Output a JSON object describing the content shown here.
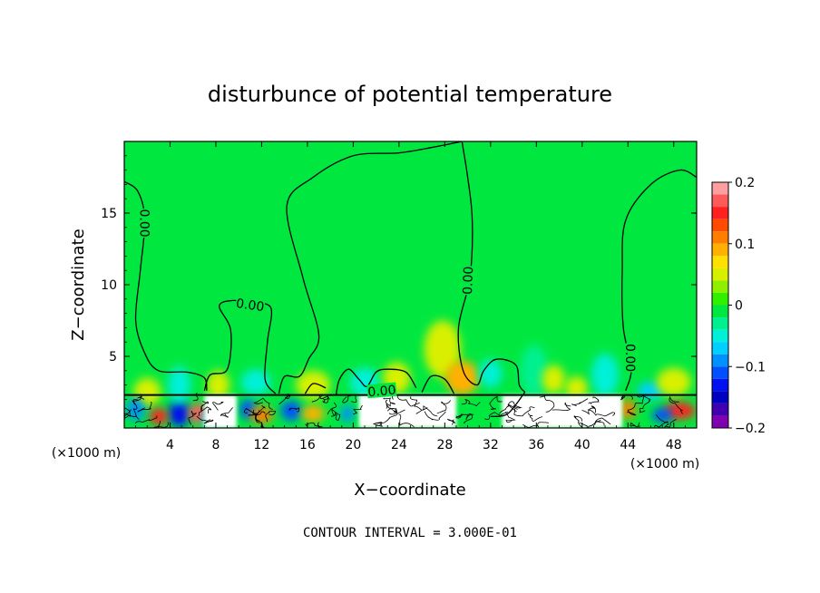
{
  "chart_data": {
    "type": "heatmap",
    "title": "disturbunce of potential temperature",
    "xlabel": "X−coordinate",
    "ylabel": "Z−coordinate",
    "x_unit_left": "(×1000 m)",
    "x_unit_right": "(×1000 m)",
    "xlim": [
      0,
      50
    ],
    "ylim": [
      0,
      20
    ],
    "x_ticks": [
      {
        "value": 4,
        "label": "4"
      },
      {
        "value": 8,
        "label": "8"
      },
      {
        "value": 12,
        "label": "12"
      },
      {
        "value": 16,
        "label": "16"
      },
      {
        "value": 20,
        "label": "20"
      },
      {
        "value": 24,
        "label": "24"
      },
      {
        "value": 28,
        "label": "28"
      },
      {
        "value": 32,
        "label": "32"
      },
      {
        "value": 36,
        "label": "36"
      },
      {
        "value": 40,
        "label": "40"
      },
      {
        "value": 44,
        "label": "44"
      },
      {
        "value": 48,
        "label": "48"
      }
    ],
    "y_ticks": [
      {
        "value": 5,
        "label": "5"
      },
      {
        "value": 10,
        "label": "10"
      },
      {
        "value": 15,
        "label": "15"
      }
    ],
    "colorbar": {
      "range": [
        -0.2,
        0.2
      ],
      "levels": [
        {
          "lo": 0.18,
          "hi": 0.2,
          "color": "#ff9e9e"
        },
        {
          "lo": 0.16,
          "hi": 0.18,
          "color": "#ff5a5a"
        },
        {
          "lo": 0.14,
          "hi": 0.16,
          "color": "#ff2020"
        },
        {
          "lo": 0.12,
          "hi": 0.14,
          "color": "#ff4a00"
        },
        {
          "lo": 0.1,
          "hi": 0.12,
          "color": "#ff7e00"
        },
        {
          "lo": 0.08,
          "hi": 0.1,
          "color": "#ffb000"
        },
        {
          "lo": 0.06,
          "hi": 0.08,
          "color": "#ffe000"
        },
        {
          "lo": 0.04,
          "hi": 0.06,
          "color": "#d8f000"
        },
        {
          "lo": 0.02,
          "hi": 0.04,
          "color": "#8ef000"
        },
        {
          "lo": 0.0,
          "hi": 0.02,
          "color": "#30f000"
        },
        {
          "lo": -0.02,
          "hi": 0.0,
          "color": "#00e840"
        },
        {
          "lo": -0.04,
          "hi": -0.02,
          "color": "#00f090"
        },
        {
          "lo": -0.06,
          "hi": -0.04,
          "color": "#00f0d8"
        },
        {
          "lo": -0.08,
          "hi": -0.06,
          "color": "#00d0ff"
        },
        {
          "lo": -0.1,
          "hi": -0.08,
          "color": "#0090ff"
        },
        {
          "lo": -0.12,
          "hi": -0.1,
          "color": "#0050ff"
        },
        {
          "lo": -0.14,
          "hi": -0.12,
          "color": "#0010f0"
        },
        {
          "lo": -0.16,
          "hi": -0.14,
          "color": "#0000c0"
        },
        {
          "lo": -0.18,
          "hi": -0.16,
          "color": "#4000b0"
        },
        {
          "lo": -0.2,
          "hi": -0.18,
          "color": "#8000b0"
        }
      ],
      "tick_labels": [
        {
          "value": 0.2,
          "label": "0.2"
        },
        {
          "value": 0.1,
          "label": "0.1"
        },
        {
          "value": 0.0,
          "label": "0"
        },
        {
          "value": -0.1,
          "label": "−0.1"
        },
        {
          "value": -0.2,
          "label": "−0.2"
        }
      ]
    },
    "background_value": -0.01,
    "contour_labels": [
      {
        "x": 1.8,
        "z": 14.3,
        "text": "0.00",
        "rotate": 90
      },
      {
        "x": 11.0,
        "z": 8.6,
        "text": "0.00",
        "rotate": 8
      },
      {
        "x": 22.5,
        "z": 2.6,
        "text": "0.00",
        "rotate": -5
      },
      {
        "x": 30.0,
        "z": 10.3,
        "text": "0.00",
        "rotate": -88
      },
      {
        "x": 44.2,
        "z": 4.9,
        "text": "0.00",
        "rotate": 90
      }
    ],
    "zero_contours": [
      {
        "name": "c1",
        "points": [
          [
            0,
            17.2
          ],
          [
            1.2,
            16.5
          ],
          [
            1.8,
            14.5
          ],
          [
            1.4,
            11.0
          ],
          [
            1.0,
            7.5
          ],
          [
            1.8,
            5.2
          ],
          [
            3.0,
            4.0
          ],
          [
            5.5,
            3.9
          ],
          [
            7.0,
            3.5
          ],
          [
            7.2,
            2.6
          ]
        ]
      },
      {
        "name": "c2",
        "points": [
          [
            7.0,
            2.6
          ],
          [
            7.5,
            3.7
          ],
          [
            9.0,
            4.1
          ],
          [
            9.3,
            6.8
          ],
          [
            8.3,
            8.5
          ],
          [
            9.5,
            8.9
          ],
          [
            11.0,
            8.7
          ],
          [
            12.8,
            8.4
          ],
          [
            12.5,
            6.0
          ],
          [
            12.3,
            3.4
          ],
          [
            13.2,
            2.4
          ]
        ]
      },
      {
        "name": "c3",
        "points": [
          [
            13.5,
            2.4
          ],
          [
            14.0,
            3.6
          ],
          [
            15.3,
            3.6
          ],
          [
            16.1,
            4.8
          ],
          [
            17.0,
            6.5
          ],
          [
            15.6,
            10.5
          ],
          [
            14.2,
            15.5
          ],
          [
            16.5,
            17.5
          ],
          [
            20.0,
            19.0
          ],
          [
            24.0,
            19.2
          ],
          [
            27.0,
            19.6
          ],
          [
            29.5,
            20.0
          ]
        ]
      },
      {
        "name": "c4",
        "points": [
          [
            29.5,
            20.0
          ],
          [
            30.0,
            17.5
          ],
          [
            30.4,
            14.5
          ],
          [
            30.2,
            10.5
          ],
          [
            29.2,
            7.0
          ],
          [
            29.6,
            4.0
          ],
          [
            30.8,
            3.0
          ],
          [
            31.4,
            4.0
          ],
          [
            32.5,
            4.8
          ],
          [
            34.2,
            4.4
          ],
          [
            34.5,
            3.0
          ],
          [
            35.0,
            2.5
          ]
        ]
      },
      {
        "name": "c5",
        "points": [
          [
            35.0,
            2.5
          ],
          [
            33.5,
            1.0
          ],
          [
            32.0,
            0.8
          ]
        ]
      },
      {
        "name": "c6",
        "points": [
          [
            50.0,
            17.5
          ],
          [
            48.5,
            18.0
          ],
          [
            46.0,
            17.0
          ],
          [
            43.8,
            14.5
          ],
          [
            43.5,
            11.0
          ],
          [
            43.6,
            7.0
          ],
          [
            44.3,
            4.2
          ],
          [
            43.8,
            2.6
          ]
        ]
      },
      {
        "name": "c7",
        "points": [
          [
            18.5,
            2.3
          ],
          [
            18.8,
            3.4
          ],
          [
            19.6,
            4.1
          ],
          [
            20.5,
            3.4
          ],
          [
            21.2,
            2.9
          ],
          [
            22.0,
            3.9
          ],
          [
            23.0,
            4.1
          ],
          [
            24.6,
            3.9
          ],
          [
            25.5,
            2.8
          ]
        ]
      },
      {
        "name": "c8",
        "points": [
          [
            26.0,
            2.5
          ],
          [
            26.8,
            3.6
          ],
          [
            28.0,
            3.4
          ],
          [
            28.8,
            2.4
          ]
        ]
      },
      {
        "name": "c9",
        "points": [
          [
            15.8,
            2.4
          ],
          [
            16.5,
            3.1
          ],
          [
            17.6,
            2.8
          ]
        ]
      }
    ],
    "blobs": [
      {
        "x": 4.8,
        "z": 1.0,
        "rx": 0.9,
        "rz": 0.9,
        "value": -0.13
      },
      {
        "x": 4.8,
        "z": 3.0,
        "rx": 1.0,
        "rz": 1.3,
        "value": -0.06
      },
      {
        "x": 2.0,
        "z": 2.5,
        "rx": 1.2,
        "rz": 1.0,
        "value": 0.05
      },
      {
        "x": 6.5,
        "z": 1.0,
        "rx": 0.9,
        "rz": 0.7,
        "value": 0.16
      },
      {
        "x": 3.0,
        "z": 0.8,
        "rx": 0.8,
        "rz": 0.6,
        "value": 0.14
      },
      {
        "x": 8.0,
        "z": 0.7,
        "rx": 1.2,
        "rz": 0.6,
        "value": -0.08
      },
      {
        "x": 8.2,
        "z": 3.0,
        "rx": 1.0,
        "rz": 1.0,
        "value": 0.04
      },
      {
        "x": 10.8,
        "z": 1.3,
        "rx": 0.7,
        "rz": 0.7,
        "value": -0.12
      },
      {
        "x": 12.0,
        "z": 0.9,
        "rx": 1.0,
        "rz": 0.6,
        "value": 0.1
      },
      {
        "x": 11.5,
        "z": 3.2,
        "rx": 1.3,
        "rz": 0.9,
        "value": -0.06
      },
      {
        "x": 14.6,
        "z": 1.2,
        "rx": 0.9,
        "rz": 0.7,
        "value": -0.12
      },
      {
        "x": 16.5,
        "z": 1.0,
        "rx": 1.0,
        "rz": 0.6,
        "value": 0.08
      },
      {
        "x": 16.5,
        "z": 3.0,
        "rx": 1.5,
        "rz": 1.0,
        "value": 0.04
      },
      {
        "x": 21.0,
        "z": 3.2,
        "rx": 1.3,
        "rz": 1.0,
        "value": -0.05
      },
      {
        "x": 23.8,
        "z": 3.5,
        "rx": 1.2,
        "rz": 1.1,
        "value": 0.05
      },
      {
        "x": 27.8,
        "z": 5.5,
        "rx": 1.6,
        "rz": 2.0,
        "value": 0.05
      },
      {
        "x": 29.5,
        "z": 3.5,
        "rx": 1.5,
        "rz": 1.2,
        "value": 0.08
      },
      {
        "x": 32.0,
        "z": 3.8,
        "rx": 1.0,
        "rz": 1.0,
        "value": -0.05
      },
      {
        "x": 35.8,
        "z": 4.0,
        "rx": 1.2,
        "rz": 1.8,
        "value": -0.04
      },
      {
        "x": 37.5,
        "z": 3.4,
        "rx": 1.0,
        "rz": 1.0,
        "value": 0.05
      },
      {
        "x": 39.5,
        "z": 2.8,
        "rx": 1.0,
        "rz": 0.8,
        "value": 0.04
      },
      {
        "x": 42.0,
        "z": 3.7,
        "rx": 1.2,
        "rz": 1.5,
        "value": -0.05
      },
      {
        "x": 46.0,
        "z": 2.6,
        "rx": 1.2,
        "rz": 0.6,
        "value": -0.08
      },
      {
        "x": 48.0,
        "z": 3.2,
        "rx": 1.5,
        "rz": 1.0,
        "value": 0.04
      },
      {
        "x": 48.5,
        "z": 1.2,
        "rx": 1.4,
        "rz": 0.6,
        "value": 0.14
      },
      {
        "x": 47.0,
        "z": 0.9,
        "rx": 0.9,
        "rz": 0.5,
        "value": -0.12
      },
      {
        "x": 44.0,
        "z": 1.3,
        "rx": 0.7,
        "rz": 0.7,
        "value": 0.1
      },
      {
        "x": 1.0,
        "z": 1.3,
        "rx": 0.8,
        "rz": 0.8,
        "value": -0.1
      },
      {
        "x": 19.5,
        "z": 1.0,
        "rx": 0.6,
        "rz": 0.6,
        "value": -0.1
      }
    ],
    "white_regions": [
      {
        "x0": 20.5,
        "x1": 29.0
      },
      {
        "x0": 33.0,
        "x1": 43.5
      },
      {
        "x0": 7.0,
        "x1": 9.8
      }
    ],
    "terrain_top_z": 2.3
  },
  "footer": {
    "contour_interval": "CONTOUR INTERVAL =  3.000E-01"
  }
}
